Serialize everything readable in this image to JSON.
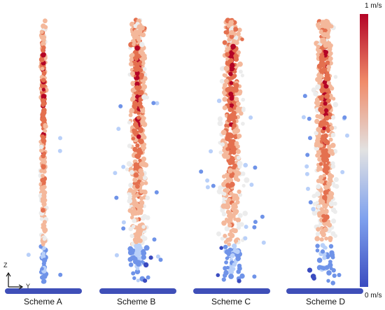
{
  "colorbar": {
    "max_label": "1 m/s",
    "min_label": "0 m/s",
    "colors": [
      "#3b4cc0",
      "#6f93e8",
      "#b9d0f9",
      "#ececec",
      "#f4b89b",
      "#e4704f",
      "#b40426"
    ]
  },
  "axes": {
    "z_label": "Z",
    "y_label": "Y"
  },
  "columns": [
    {
      "label": "Scheme A",
      "spread": 0.12
    },
    {
      "label": "Scheme B",
      "spread": 0.55
    },
    {
      "label": "Scheme C",
      "spread": 0.75
    },
    {
      "label": "Scheme D",
      "spread": 0.65
    }
  ]
}
